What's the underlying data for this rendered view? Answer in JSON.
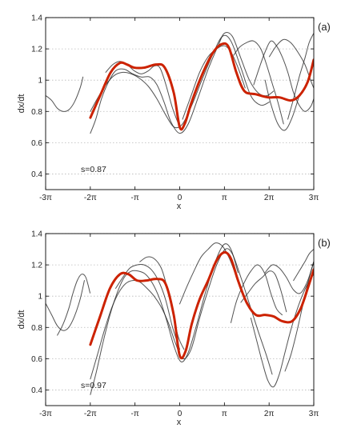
{
  "chart_data": [
    {
      "type": "line",
      "panel_tag": "(a)",
      "xlabel": "x",
      "ylabel": "dx/dt",
      "xlim": [
        -9.42478,
        9.42478
      ],
      "ylim": [
        0.3,
        1.4
      ],
      "xticks": [
        -9.42478,
        -6.28319,
        -3.14159,
        0,
        3.14159,
        6.28319,
        9.42478
      ],
      "xtick_labels": [
        "-3π",
        "-2π",
        "-π",
        "0",
        "π",
        "2π",
        "3π"
      ],
      "yticks": [
        0.4,
        0.6,
        0.8,
        1.0,
        1.2,
        1.4
      ],
      "ytick_labels": [
        "0.4",
        "0.6",
        "0.8",
        "1",
        "1.2",
        "1.4"
      ],
      "grid": "horizontal dotted",
      "annotation": "s=0.87",
      "colors": {
        "highlight_series": "#cc2200",
        "background_series": "#222222"
      },
      "series": [
        {
          "role": "highlight",
          "x": [
            -6.28,
            -5.55,
            -4.85,
            -4.2,
            -3.7,
            -3.2,
            -2.5,
            -1.65,
            -1.05,
            -0.42,
            0.0,
            0.35,
            0.84,
            1.55,
            2.3,
            2.94,
            3.45,
            3.98,
            4.55,
            5.35,
            6.2,
            7.0,
            7.8,
            8.4,
            9.0,
            9.42
          ],
          "y": [
            0.76,
            0.91,
            1.05,
            1.11,
            1.1,
            1.08,
            1.08,
            1.1,
            1.08,
            0.92,
            0.7,
            0.72,
            0.86,
            1.03,
            1.17,
            1.23,
            1.21,
            1.05,
            0.93,
            0.91,
            0.89,
            0.89,
            0.87,
            0.9,
            0.99,
            1.13
          ]
        },
        {
          "role": "background",
          "x": [
            -9.4,
            -9.0,
            -8.6,
            -8.2,
            -7.8,
            -7.4,
            -7.0,
            -6.8
          ],
          "y": [
            0.9,
            0.87,
            0.82,
            0.8,
            0.81,
            0.86,
            0.95,
            1.02
          ]
        },
        {
          "role": "background",
          "x": [
            -6.28,
            -5.9,
            -5.5,
            -5.0,
            -4.5,
            -3.9,
            -3.3,
            -2.7,
            -2.1,
            -1.6,
            -1.1,
            -0.6,
            0.0,
            0.6,
            1.3,
            2.0,
            2.7,
            3.14,
            3.7,
            4.3,
            4.9,
            5.5,
            6.1,
            6.6
          ],
          "y": [
            0.66,
            0.75,
            0.88,
            0.99,
            1.06,
            1.07,
            1.04,
            1.02,
            1.02,
            0.97,
            0.86,
            0.73,
            0.66,
            0.72,
            0.89,
            1.07,
            1.22,
            1.3,
            1.28,
            1.14,
            1.0,
            0.92,
            0.9,
            0.93
          ]
        },
        {
          "role": "background",
          "x": [
            -6.28,
            -5.8,
            -5.2,
            -4.6,
            -4.0,
            -3.4,
            -2.8,
            -2.2,
            -1.6,
            -1.0,
            -0.4,
            0.2,
            0.9,
            1.6,
            2.3,
            3.0,
            3.6,
            4.3,
            5.0,
            5.7,
            6.3
          ],
          "y": [
            0.8,
            0.88,
            0.97,
            1.03,
            1.05,
            1.04,
            1.01,
            0.96,
            0.88,
            0.78,
            0.7,
            0.72,
            0.85,
            1.01,
            1.16,
            1.28,
            1.25,
            1.08,
            0.9,
            0.84,
            0.86
          ]
        },
        {
          "role": "background",
          "x": [
            -5.2,
            -4.7,
            -4.2,
            -3.7,
            -3.2,
            -2.7,
            -2.2,
            -1.8,
            -1.4,
            -1.0,
            -0.5,
            0.0
          ],
          "y": [
            1.05,
            1.1,
            1.12,
            1.1,
            1.06,
            1.04,
            1.06,
            1.09,
            1.08,
            0.98,
            0.82,
            0.7
          ]
        },
        {
          "role": "background",
          "x": [
            0.2,
            0.8,
            1.4,
            2.0,
            2.6,
            3.14,
            3.6,
            4.1,
            4.6
          ],
          "y": [
            0.75,
            0.9,
            1.05,
            1.15,
            1.2,
            1.22,
            1.18,
            1.08,
            0.95
          ]
        },
        {
          "role": "background",
          "x": [
            3.8,
            4.2,
            4.7,
            5.2,
            5.7,
            6.1,
            6.5,
            6.9,
            7.3
          ],
          "y": [
            1.16,
            1.21,
            1.24,
            1.25,
            1.2,
            1.1,
            0.98,
            0.86,
            0.72
          ]
        },
        {
          "role": "background",
          "x": [
            5.2,
            5.6,
            6.0,
            6.4,
            6.8,
            7.2,
            7.6,
            8.0,
            8.4,
            8.8,
            9.2,
            9.42
          ],
          "y": [
            0.97,
            1.08,
            1.18,
            1.25,
            1.22,
            1.15,
            1.05,
            0.92,
            0.84,
            0.8,
            0.83,
            0.88
          ]
        },
        {
          "role": "background",
          "x": [
            6.3,
            6.8,
            7.3,
            7.8,
            8.3,
            8.8,
            9.2,
            9.42
          ],
          "y": [
            1.15,
            1.22,
            1.26,
            1.24,
            1.18,
            1.1,
            1.0,
            0.95
          ]
        },
        {
          "role": "background",
          "x": [
            7.6,
            8.0,
            8.4,
            8.8,
            9.1,
            9.42
          ],
          "y": [
            0.75,
            0.88,
            1.02,
            1.14,
            1.24,
            1.3
          ]
        },
        {
          "role": "background",
          "x": [
            6.0,
            6.4,
            6.9,
            7.4,
            7.9,
            8.4
          ],
          "y": [
            1.0,
            0.85,
            0.72,
            0.68,
            0.76,
            0.9
          ]
        }
      ]
    },
    {
      "type": "line",
      "panel_tag": "(b)",
      "xlabel": "x",
      "ylabel": "dx/dt",
      "xlim": [
        -9.42478,
        9.42478
      ],
      "ylim": [
        0.3,
        1.4
      ],
      "xticks": [
        -9.42478,
        -6.28319,
        -3.14159,
        0,
        3.14159,
        6.28319,
        9.42478
      ],
      "xtick_labels": [
        "-3π",
        "-2π",
        "-π",
        "0",
        "π",
        "2π",
        "3π"
      ],
      "yticks": [
        0.4,
        0.6,
        0.8,
        1.0,
        1.2,
        1.4
      ],
      "ytick_labels": [
        "0.4",
        "0.6",
        "0.8",
        "1",
        "1.2",
        "1.4"
      ],
      "grid": "horizontal dotted",
      "annotation": "s=0.97",
      "colors": {
        "highlight_series": "#cc2200",
        "background_series": "#222222"
      },
      "series": [
        {
          "role": "highlight",
          "x": [
            -6.28,
            -5.6,
            -4.9,
            -4.2,
            -3.6,
            -3.0,
            -2.35,
            -1.6,
            -1.0,
            -0.42,
            0.0,
            0.42,
            0.84,
            1.4,
            2.0,
            2.6,
            3.14,
            3.6,
            4.1,
            4.7,
            5.35,
            6.0,
            6.6,
            7.2,
            7.9,
            8.5,
            9.0,
            9.42
          ],
          "y": [
            0.69,
            0.87,
            1.05,
            1.14,
            1.14,
            1.1,
            1.1,
            1.11,
            1.08,
            0.88,
            0.62,
            0.65,
            0.82,
            0.98,
            1.1,
            1.23,
            1.28,
            1.24,
            1.1,
            0.96,
            0.88,
            0.88,
            0.87,
            0.84,
            0.84,
            0.92,
            1.05,
            1.17
          ]
        },
        {
          "role": "background",
          "x": [
            -9.4,
            -9.0,
            -8.6,
            -8.2,
            -7.8,
            -7.4,
            -7.0,
            -6.7
          ],
          "y": [
            0.95,
            0.88,
            0.81,
            0.78,
            0.8,
            0.87,
            0.98,
            1.1
          ]
        },
        {
          "role": "background",
          "x": [
            -8.6,
            -8.2,
            -7.8,
            -7.5,
            -7.2,
            -6.9,
            -6.6,
            -6.3
          ],
          "y": [
            0.75,
            0.82,
            0.92,
            1.02,
            1.1,
            1.14,
            1.12,
            1.02
          ]
        },
        {
          "role": "background",
          "x": [
            -6.28,
            -5.9,
            -5.4,
            -4.9,
            -4.4,
            -3.9,
            -3.4,
            -2.9,
            -2.4,
            -1.9,
            -1.4,
            -0.9,
            -0.4,
            0.1,
            0.6,
            1.2,
            1.8,
            2.5,
            3.1,
            3.6,
            4.1
          ],
          "y": [
            0.37,
            0.5,
            0.7,
            0.88,
            1.02,
            1.12,
            1.16,
            1.16,
            1.14,
            1.08,
            0.98,
            0.84,
            0.68,
            0.58,
            0.64,
            0.82,
            1.02,
            1.22,
            1.33,
            1.3,
            1.15
          ]
        },
        {
          "role": "background",
          "x": [
            -6.28,
            -5.8,
            -5.3,
            -4.8,
            -4.3,
            -3.8,
            -3.3,
            -2.8,
            -2.3,
            -1.8,
            -1.3,
            -0.8,
            -0.3,
            0.2,
            0.8,
            1.4,
            2.0,
            2.6,
            3.2,
            3.7,
            4.3,
            4.9,
            5.5,
            6.1,
            6.5
          ],
          "y": [
            0.47,
            0.62,
            0.78,
            0.92,
            1.02,
            1.08,
            1.1,
            1.09,
            1.05,
            1.0,
            0.93,
            0.83,
            0.7,
            0.6,
            0.66,
            0.86,
            1.04,
            1.2,
            1.3,
            1.27,
            1.12,
            0.95,
            0.78,
            0.62,
            0.5
          ]
        },
        {
          "role": "background",
          "x": [
            -4.5,
            -4.0,
            -3.5,
            -3.0,
            -2.5,
            -2.0,
            -1.5,
            -1.0,
            -0.5,
            0.0
          ],
          "y": [
            1.05,
            1.12,
            1.18,
            1.2,
            1.2,
            1.17,
            1.1,
            0.98,
            0.8,
            0.66
          ]
        },
        {
          "role": "background",
          "x": [
            -2.8,
            -2.3,
            -1.8,
            -1.3,
            -0.9,
            -0.5,
            -0.1,
            0.3
          ],
          "y": [
            1.22,
            1.25,
            1.24,
            1.18,
            1.06,
            0.9,
            0.74,
            0.66
          ]
        },
        {
          "role": "background",
          "x": [
            0.0,
            0.5,
            1.0,
            1.5,
            2.0,
            2.5,
            3.0,
            3.5,
            4.0,
            4.5
          ],
          "y": [
            0.95,
            1.06,
            1.16,
            1.25,
            1.3,
            1.34,
            1.32,
            1.24,
            1.12,
            1.0
          ]
        },
        {
          "role": "background",
          "x": [
            3.6,
            4.0,
            4.5,
            5.0,
            5.5,
            6.0,
            6.4,
            6.8,
            7.2
          ],
          "y": [
            0.83,
            0.97,
            1.08,
            1.16,
            1.2,
            1.14,
            1.02,
            0.92,
            0.88
          ]
        },
        {
          "role": "background",
          "x": [
            4.3,
            4.8,
            5.3,
            5.8,
            6.3,
            6.7,
            7.1,
            7.5
          ],
          "y": [
            0.96,
            1.02,
            1.08,
            1.12,
            1.16,
            1.14,
            1.04,
            0.9
          ]
        },
        {
          "role": "background",
          "x": [
            5.0,
            5.4,
            5.8,
            6.2,
            6.6,
            7.0,
            7.4,
            7.8,
            8.2,
            8.6,
            9.0,
            9.42
          ],
          "y": [
            0.86,
            0.72,
            0.58,
            0.46,
            0.42,
            0.5,
            0.64,
            0.78,
            0.9,
            1.0,
            1.08,
            1.14
          ]
        },
        {
          "role": "background",
          "x": [
            6.0,
            6.5,
            7.0,
            7.5,
            8.0,
            8.5,
            9.0,
            9.42
          ],
          "y": [
            1.15,
            1.2,
            1.18,
            1.12,
            1.04,
            1.02,
            1.1,
            1.22
          ]
        },
        {
          "role": "background",
          "x": [
            7.4,
            7.8,
            8.2,
            8.6,
            9.0,
            9.42
          ],
          "y": [
            0.52,
            0.62,
            0.76,
            0.92,
            1.08,
            1.22
          ]
        },
        {
          "role": "background",
          "x": [
            8.0,
            8.4,
            8.8,
            9.1,
            9.42
          ],
          "y": [
            1.1,
            1.16,
            1.22,
            1.27,
            1.3
          ]
        }
      ]
    }
  ]
}
